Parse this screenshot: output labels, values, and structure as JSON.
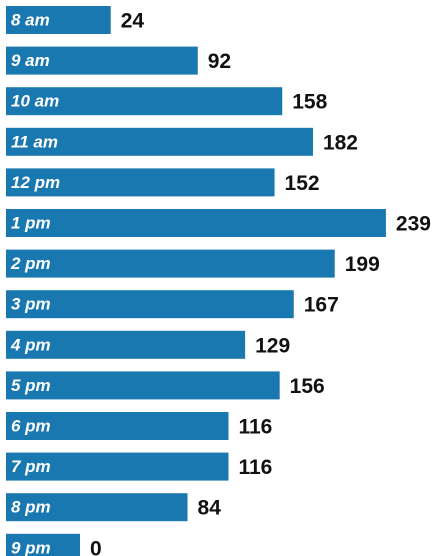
{
  "chart_data": {
    "type": "bar",
    "orientation": "horizontal",
    "color": "#1a78b0",
    "categories": [
      "8 am",
      "9 am",
      "10 am",
      "11 am",
      "12 pm",
      "1 pm",
      "2 pm",
      "3 pm",
      "4 pm",
      "5 pm",
      "6 pm",
      "7 pm",
      "8 pm",
      "9 pm"
    ],
    "values": [
      24,
      92,
      158,
      182,
      152,
      239,
      199,
      167,
      129,
      156,
      116,
      116,
      84,
      0
    ]
  }
}
